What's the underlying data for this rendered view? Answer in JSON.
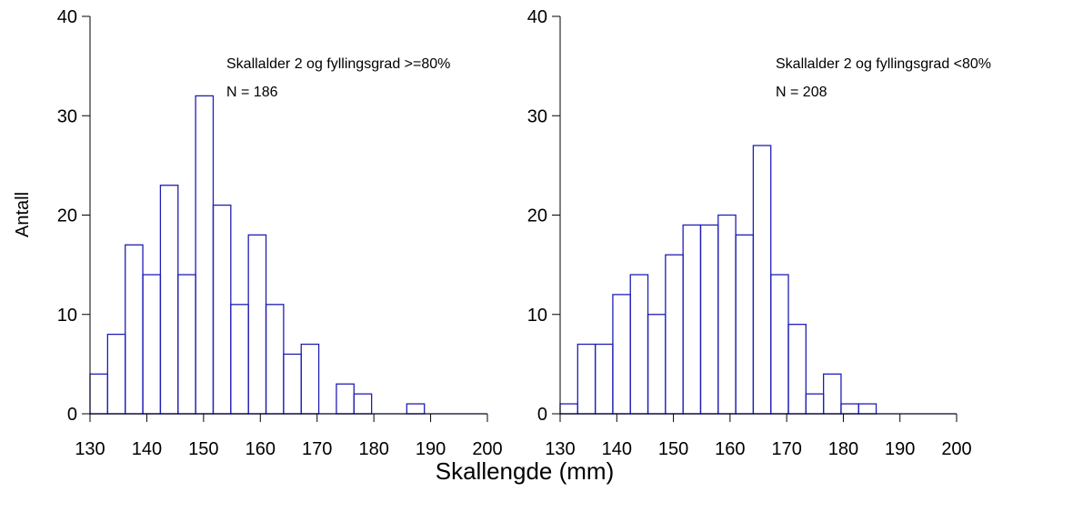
{
  "figure": {
    "ylabel": "Antall",
    "xlabel": "Skallengde (mm)"
  },
  "colors": {
    "bar_stroke": "#1f1fb4",
    "axis": "#000000"
  },
  "chart_data": [
    {
      "type": "bar",
      "annotation_line1": "Skallalder 2 og fyllingsgrad >=80%",
      "annotation_line2": "N = 186",
      "xlim": [
        130,
        200
      ],
      "ylim": [
        0,
        40
      ],
      "x_ticks": [
        130,
        140,
        150,
        160,
        170,
        180,
        190,
        200
      ],
      "y_ticks": [
        0,
        10,
        20,
        30,
        40
      ],
      "bin_width": 3.1,
      "bin_edges": [
        130.0,
        133.1,
        136.2,
        139.3,
        142.4,
        145.5,
        148.6,
        151.7,
        154.8,
        157.9,
        161.0,
        164.1,
        167.2,
        170.3,
        173.4,
        176.5,
        179.6,
        182.7,
        185.8,
        188.9,
        192.0,
        195.1,
        198.2
      ],
      "values": [
        4,
        8,
        17,
        14,
        23,
        14,
        32,
        21,
        11,
        18,
        11,
        6,
        7,
        0,
        3,
        2,
        0,
        0,
        1,
        0,
        0,
        0
      ]
    },
    {
      "type": "bar",
      "annotation_line1": "Skallalder 2 og fyllingsgrad <80%",
      "annotation_line2": "N = 208",
      "xlim": [
        130,
        200
      ],
      "ylim": [
        0,
        40
      ],
      "x_ticks": [
        130,
        140,
        150,
        160,
        170,
        180,
        190,
        200
      ],
      "y_ticks": [
        0,
        10,
        20,
        30,
        40
      ],
      "bin_width": 3.1,
      "bin_edges": [
        130.0,
        133.1,
        136.2,
        139.3,
        142.4,
        145.5,
        148.6,
        151.7,
        154.8,
        157.9,
        161.0,
        164.1,
        167.2,
        170.3,
        173.4,
        176.5,
        179.6,
        182.7,
        185.8,
        188.9,
        192.0,
        195.1,
        198.2
      ],
      "values": [
        1,
        7,
        7,
        12,
        14,
        10,
        16,
        19,
        19,
        20,
        18,
        27,
        14,
        9,
        2,
        4,
        1,
        1,
        0,
        0,
        0,
        0
      ]
    }
  ]
}
